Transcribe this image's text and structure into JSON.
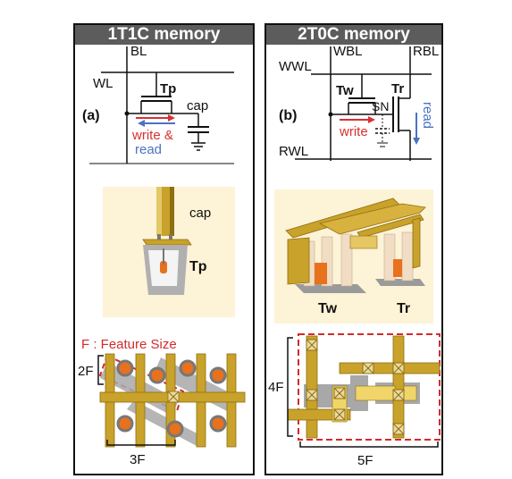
{
  "left_panel": {
    "title": "1T1C memory",
    "circuit": {
      "label_bl": "BL",
      "label_wl": "WL",
      "label_tp": "Tp",
      "label_cap": "cap",
      "label_panel": "(a)",
      "label_write": "write &",
      "label_read": "read"
    },
    "device": {
      "label_cap": "cap",
      "label_tp": "Tp"
    },
    "layout": {
      "feature_note": "F : Feature Size",
      "label_2f": "2F",
      "label_3f": "3F"
    }
  },
  "right_panel": {
    "title": "2T0C memory",
    "circuit": {
      "label_wbl": "WBL",
      "label_rbl": "RBL",
      "label_wwl": "WWL",
      "label_rwl": "RWL",
      "label_tw": "Tw",
      "label_tr": "Tr",
      "label_sn": "SN",
      "label_panel": "(b)",
      "label_write": "write",
      "label_read": "read"
    },
    "device": {
      "label_tw": "Tw",
      "label_tr": "Tr"
    },
    "layout": {
      "label_4f": "4F",
      "label_5f": "5F"
    }
  },
  "colors": {
    "header_bg": "#5c5c5c",
    "panel_bg": "#fffef8",
    "device_bg": "#fdf3d6",
    "gold": "#c8a22a",
    "gold_dark": "#8f6e10",
    "orange": "#e8711e",
    "red_dash": "#d42a2a",
    "write_red": "#d93030",
    "read_blue": "#4a72c4",
    "gray_body": "#a8a8a8"
  }
}
